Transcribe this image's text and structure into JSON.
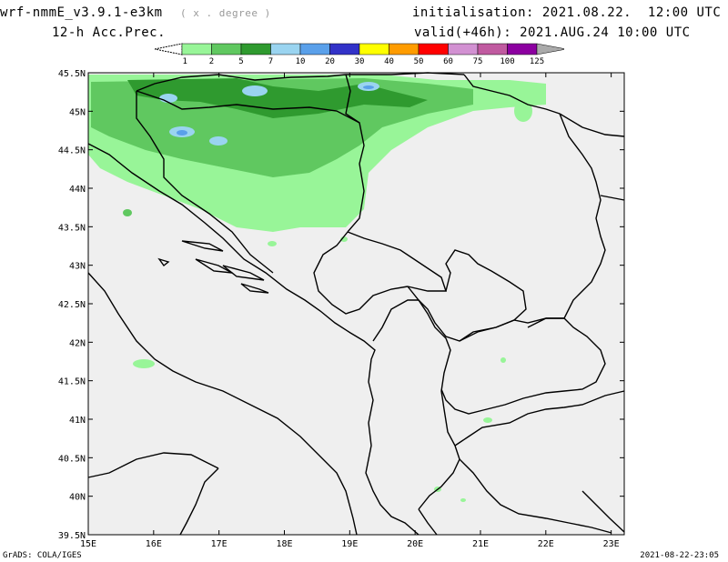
{
  "header": {
    "model_title": "wrf-nmmE_v3.9.1-e3km",
    "unit_note": "( x . degree )",
    "init_label": "initialisation: 2021.08.22.  12:00 UTC",
    "variable_label": "12-h Acc.Prec.",
    "valid_label": "valid(+46h): 2021.AUG.24 10:00 UTC"
  },
  "legend": {
    "bins": [
      {
        "label": "1",
        "color": "#98f598"
      },
      {
        "label": "2",
        "color": "#60c860"
      },
      {
        "label": "5",
        "color": "#2f9a2f"
      },
      {
        "label": "7",
        "color": "#9ad4f0"
      },
      {
        "label": "10",
        "color": "#5aa0ea"
      },
      {
        "label": "20",
        "color": "#3232c8"
      },
      {
        "label": "30",
        "color": "#ffff00"
      },
      {
        "label": "40",
        "color": "#ff9c00"
      },
      {
        "label": "50",
        "color": "#ff0000"
      },
      {
        "label": "60",
        "color": "#d291d2"
      },
      {
        "label": "75",
        "color": "#c05aa0"
      },
      {
        "label": "100",
        "color": "#8c00a0"
      },
      {
        "label": "125",
        "color": "#aaaaaa"
      }
    ]
  },
  "map": {
    "background": "#efefef",
    "lon_ticks": [
      "15E",
      "16E",
      "17E",
      "18E",
      "19E",
      "20E",
      "21E",
      "22E",
      "23E"
    ],
    "lat_ticks": [
      "45.5N",
      "45N",
      "44.5N",
      "44N",
      "43.5N",
      "43N",
      "42.5N",
      "42N",
      "41.5N",
      "41N",
      "40.5N",
      "40N",
      "39.5N"
    ]
  },
  "footer": {
    "left": "GrADS: COLA/IGES",
    "right": "2021-08-22-23:05"
  }
}
